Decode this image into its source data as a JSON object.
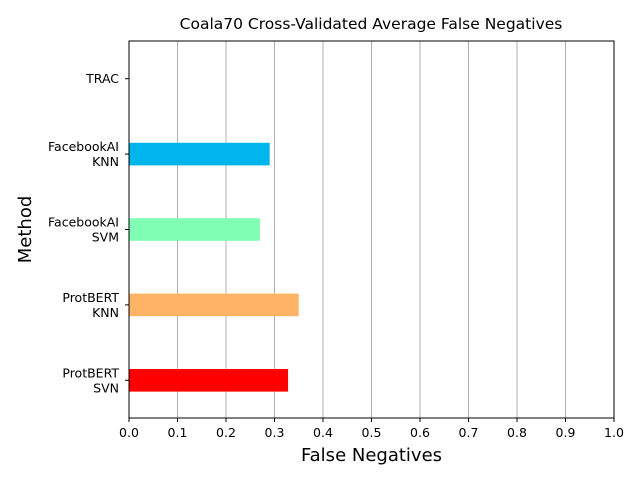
{
  "chart_data": {
    "type": "bar",
    "orientation": "horizontal",
    "title": "Coala70 Cross-Validated Average False Negatives",
    "xlabel": "False Negatives",
    "ylabel": "Method",
    "xlim": [
      0.0,
      1.0
    ],
    "xticks": [
      "0.0",
      "0.1",
      "0.2",
      "0.3",
      "0.4",
      "0.5",
      "0.6",
      "0.7",
      "0.8",
      "0.9",
      "1.0"
    ],
    "categories": [
      [
        "ProtBERT",
        "SVN"
      ],
      [
        "ProtBERT",
        "KNN"
      ],
      [
        "FacebookAI",
        "SVM"
      ],
      [
        "FacebookAI",
        "KNN"
      ],
      [
        "TRAC"
      ]
    ],
    "values": [
      0.328,
      0.35,
      0.27,
      0.29,
      0.0
    ],
    "colors": [
      "#ff0000",
      "#ffb366",
      "#80ffb4",
      "#00b4ec",
      "#8000ff"
    ],
    "grid": "x",
    "legend": "none"
  }
}
